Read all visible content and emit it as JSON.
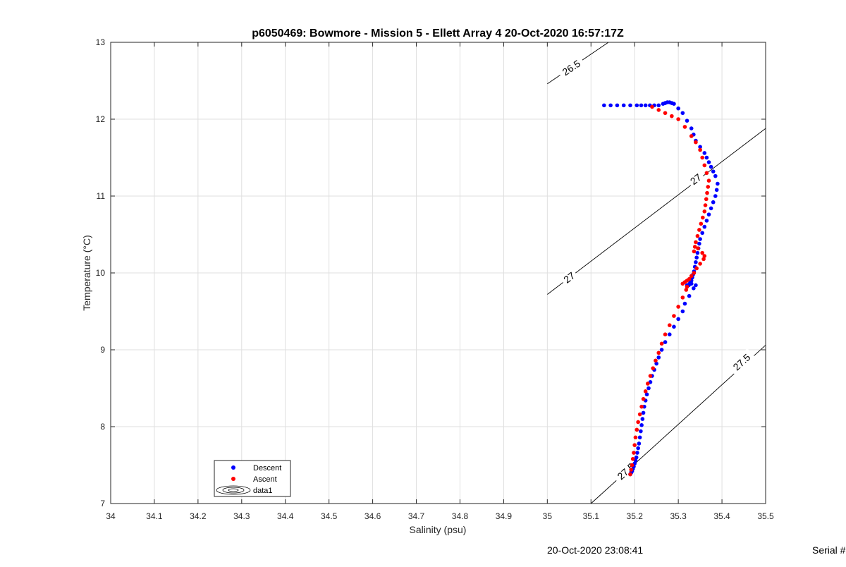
{
  "chart_data": {
    "type": "scatter",
    "title": "p6050469: Bowmore - Mission 5 - Ellett Array 4 20-Oct-2020 16:57:17Z",
    "xlabel": "Salinity (psu)",
    "ylabel": "Temperature (°C)",
    "xlim": [
      34,
      35.5
    ],
    "ylim": [
      7,
      13
    ],
    "xticks": [
      "34",
      "34.1",
      "34.2",
      "34.3",
      "34.4",
      "34.5",
      "34.6",
      "34.7",
      "34.8",
      "34.9",
      "35",
      "35.1",
      "35.2",
      "35.3",
      "35.4",
      "35.5"
    ],
    "yticks": [
      "7",
      "8",
      "9",
      "10",
      "11",
      "12",
      "13"
    ],
    "grid": true,
    "legend": {
      "position": "bottom-left",
      "entries": [
        "Descent",
        "Ascent",
        "data1"
      ]
    },
    "series": [
      {
        "name": "Descent",
        "color": "#0000ff",
        "marker": "circle",
        "x": [
          35.13,
          35.145,
          35.16,
          35.175,
          35.19,
          35.205,
          35.215,
          35.225,
          35.235,
          35.245,
          35.255,
          35.265,
          35.27,
          35.275,
          35.28,
          35.285,
          35.29,
          35.3,
          35.31,
          35.32,
          35.33,
          35.335,
          35.34,
          35.35,
          35.36,
          35.365,
          35.37,
          35.375,
          35.38,
          35.385,
          35.39,
          35.388,
          35.385,
          35.38,
          35.375,
          35.37,
          35.365,
          35.36,
          35.355,
          35.35,
          35.348,
          35.346,
          35.344,
          35.342,
          35.34,
          35.338,
          35.336,
          35.334,
          35.332,
          35.33,
          35.328,
          35.326,
          35.324,
          35.322,
          35.32,
          35.33,
          35.34,
          35.335,
          35.325,
          35.315,
          35.31,
          35.3,
          35.29,
          35.28,
          35.27,
          35.262,
          35.255,
          35.25,
          35.245,
          35.24,
          35.236,
          35.232,
          35.228,
          35.225,
          35.222,
          35.22,
          35.218,
          35.216,
          35.214,
          35.212,
          35.21,
          35.208,
          35.206,
          35.204,
          35.202,
          35.2,
          35.198,
          35.196,
          35.194,
          35.192,
          35.19
        ],
        "y": [
          12.18,
          12.18,
          12.18,
          12.18,
          12.18,
          12.18,
          12.18,
          12.18,
          12.18,
          12.18,
          12.18,
          12.2,
          12.21,
          12.22,
          12.22,
          12.21,
          12.2,
          12.14,
          12.08,
          11.98,
          11.88,
          11.8,
          11.72,
          11.64,
          11.56,
          11.5,
          11.44,
          11.38,
          11.32,
          11.26,
          11.16,
          11.08,
          11.0,
          10.92,
          10.84,
          10.76,
          10.68,
          10.6,
          10.52,
          10.44,
          10.38,
          10.32,
          10.26,
          10.2,
          10.14,
          10.08,
          10.02,
          9.98,
          9.94,
          9.9,
          9.88,
          9.86,
          9.84,
          9.84,
          9.84,
          9.86,
          9.84,
          9.8,
          9.7,
          9.6,
          9.5,
          9.4,
          9.3,
          9.2,
          9.1,
          9.0,
          8.9,
          8.82,
          8.74,
          8.66,
          8.58,
          8.5,
          8.42,
          8.34,
          8.26,
          8.18,
          8.1,
          8.02,
          7.94,
          7.86,
          7.78,
          7.72,
          7.66,
          7.6,
          7.56,
          7.52,
          7.48,
          7.45,
          7.42,
          7.4,
          7.38
        ]
      },
      {
        "name": "Ascent",
        "color": "#ff0000",
        "marker": "circle",
        "x": [
          35.24,
          35.255,
          35.27,
          35.285,
          35.3,
          35.315,
          35.33,
          35.34,
          35.35,
          35.355,
          35.36,
          35.365,
          35.37,
          35.368,
          35.366,
          35.364,
          35.362,
          35.36,
          35.356,
          35.352,
          35.348,
          35.344,
          35.34,
          35.338,
          35.336,
          35.345,
          35.355,
          35.36,
          35.358,
          35.35,
          35.342,
          35.336,
          35.33,
          35.325,
          35.32,
          35.315,
          35.31,
          35.32,
          35.318,
          35.31,
          35.3,
          35.29,
          35.28,
          35.27,
          35.262,
          35.255,
          35.248,
          35.242,
          35.236,
          35.23,
          35.225,
          35.22,
          35.216,
          35.212,
          35.208,
          35.205,
          35.202,
          35.2,
          35.198,
          35.196,
          35.194,
          35.192,
          35.19
        ],
        "y": [
          12.16,
          12.12,
          12.08,
          12.04,
          12.0,
          11.9,
          11.78,
          11.7,
          11.6,
          11.5,
          11.4,
          11.3,
          11.2,
          11.12,
          11.04,
          10.96,
          10.88,
          10.8,
          10.72,
          10.64,
          10.56,
          10.48,
          10.4,
          10.34,
          10.28,
          10.32,
          10.26,
          10.22,
          10.18,
          10.12,
          10.06,
          10.0,
          9.96,
          9.92,
          9.9,
          9.88,
          9.86,
          9.82,
          9.78,
          9.68,
          9.56,
          9.44,
          9.32,
          9.2,
          9.08,
          8.96,
          8.86,
          8.76,
          8.66,
          8.56,
          8.46,
          8.36,
          8.26,
          8.16,
          8.06,
          7.96,
          7.86,
          7.76,
          7.66,
          7.58,
          7.5,
          7.44,
          7.38
        ]
      }
    ],
    "contours": [
      {
        "label": "26.5",
        "x": [
          35.0,
          35.14
        ],
        "y": [
          12.46,
          13.0
        ]
      },
      {
        "label": "27",
        "x": [
          35.0,
          35.5
        ],
        "y": [
          9.72,
          11.88
        ]
      },
      {
        "label": "27.5",
        "x": [
          35.1,
          35.5
        ],
        "y": [
          7.0,
          9.06
        ]
      }
    ],
    "contour_labels": [
      {
        "text": "26.5",
        "x": 35.055,
        "y": 12.67
      },
      {
        "text": "27",
        "x": 35.05,
        "y": 9.94
      },
      {
        "text": "27",
        "x": 35.34,
        "y": 11.22
      },
      {
        "text": "27.5",
        "x": 35.445,
        "y": 8.84
      },
      {
        "text": "27.5",
        "x": 35.18,
        "y": 7.42
      }
    ]
  },
  "footer": {
    "timestamp": "20-Oct-2020 23:08:41",
    "serial": "Serial #"
  }
}
